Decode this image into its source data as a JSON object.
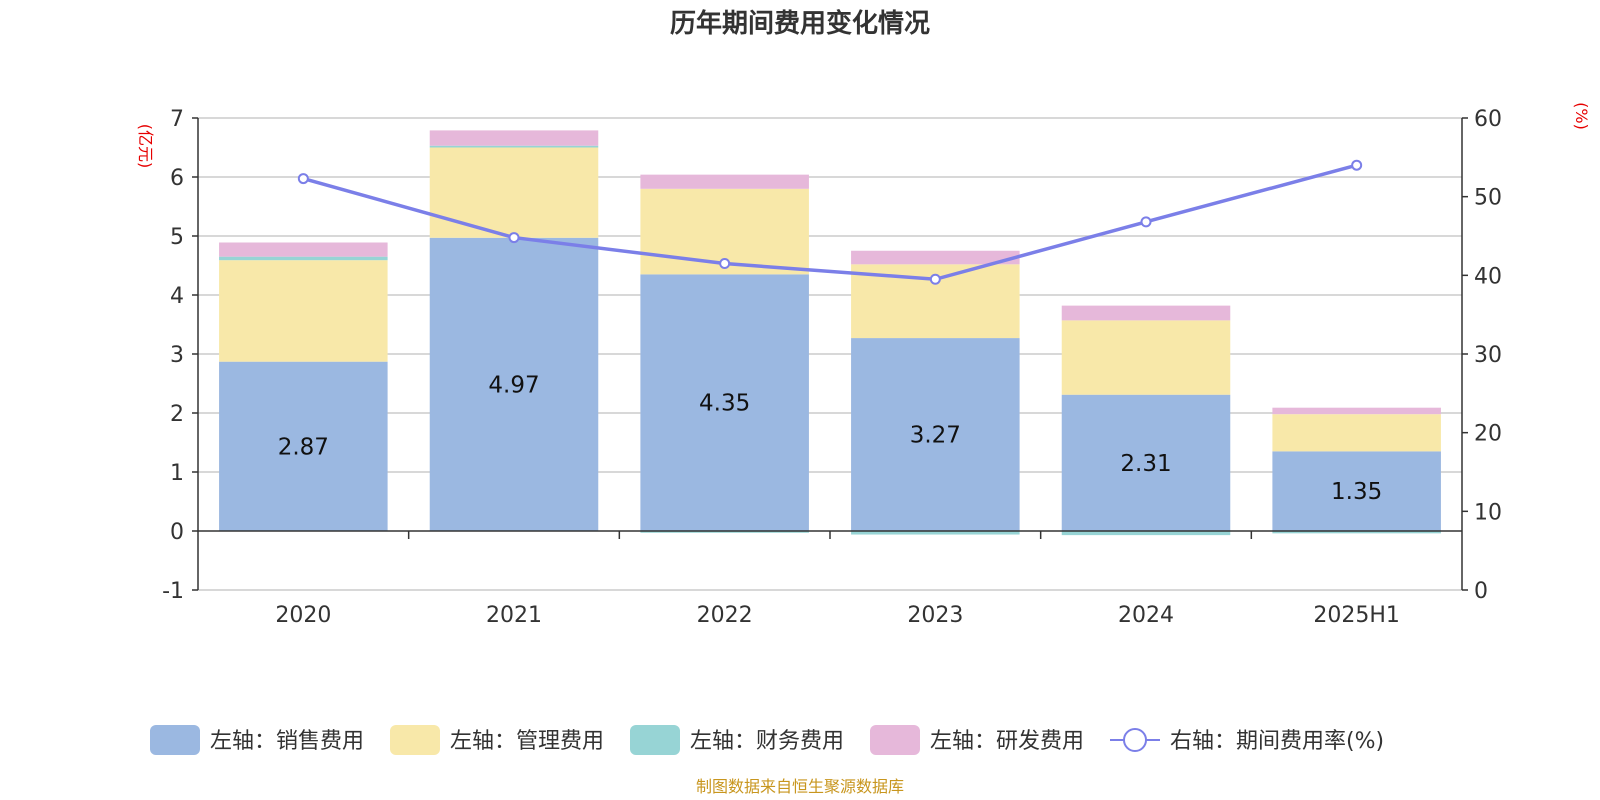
{
  "chart_data": {
    "type": "bar",
    "title": "历年期间费用变化情况",
    "categories": [
      "2020",
      "2021",
      "2022",
      "2023",
      "2024",
      "2025H1"
    ],
    "left_axis": {
      "unit_label": "(亿元)",
      "ylim": [
        -1,
        7
      ],
      "ticks": [
        -1,
        0,
        1,
        2,
        3,
        4,
        5,
        6,
        7
      ]
    },
    "right_axis": {
      "unit_label": "(%)",
      "ylim": [
        0,
        60
      ],
      "ticks": [
        0,
        10,
        20,
        30,
        40,
        50,
        60
      ]
    },
    "stacked": true,
    "series": [
      {
        "name": "左轴：销售费用",
        "type": "bar",
        "axis": "left",
        "color": "#9bb8e1",
        "values": [
          2.87,
          4.97,
          4.35,
          3.27,
          2.31,
          1.35
        ],
        "show_labels": true
      },
      {
        "name": "左轴：管理费用",
        "type": "bar",
        "axis": "left",
        "color": "#f8e8a9",
        "values": [
          1.72,
          1.53,
          1.45,
          1.25,
          1.26,
          0.63
        ]
      },
      {
        "name": "左轴：财务费用",
        "type": "bar",
        "axis": "left",
        "color": "#97d4d5",
        "values": [
          0.06,
          0.03,
          -0.03,
          -0.06,
          -0.07,
          -0.04
        ]
      },
      {
        "name": "左轴：研发费用",
        "type": "bar",
        "axis": "left",
        "color": "#e6b8da",
        "values": [
          0.24,
          0.26,
          0.24,
          0.23,
          0.25,
          0.11
        ]
      },
      {
        "name": "右轴：期间费用率(%)",
        "type": "line",
        "axis": "right",
        "color": "#7b7fe8",
        "values": [
          52.3,
          44.8,
          41.5,
          39.5,
          46.8,
          54.0
        ]
      }
    ],
    "grid": true,
    "legend_position": "bottom"
  },
  "source_note": "制图数据来自恒生聚源数据库"
}
